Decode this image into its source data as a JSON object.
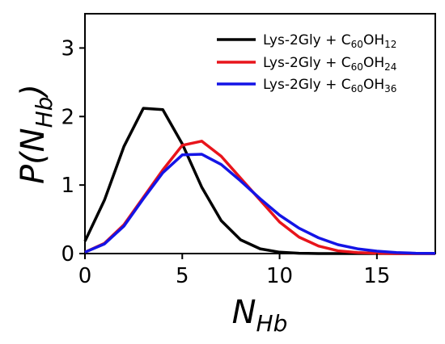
{
  "chart_data": {
    "type": "line",
    "x": [
      0,
      1,
      2,
      3,
      4,
      5,
      6,
      7,
      8,
      9,
      10,
      11,
      12,
      13,
      14,
      15,
      16,
      17,
      18
    ],
    "series": [
      {
        "name": "Lys-2Gly + C60OH12",
        "label_prefix": "Lys-2Gly + C",
        "label_sub1": "60",
        "label_mid": "OH",
        "label_sub2": "12",
        "color": "#000000",
        "values": [
          0.18,
          0.78,
          1.56,
          2.12,
          2.1,
          1.6,
          0.97,
          0.48,
          0.2,
          0.07,
          0.02,
          0.005,
          0,
          0,
          0,
          0,
          0,
          0,
          0
        ]
      },
      {
        "name": "Lys-2Gly + C60OH24",
        "label_prefix": "Lys-2Gly + C",
        "label_sub1": "60",
        "label_mid": "OH",
        "label_sub2": "24",
        "color": "#e8141b",
        "values": [
          0.02,
          0.15,
          0.42,
          0.82,
          1.22,
          1.58,
          1.64,
          1.42,
          1.1,
          0.78,
          0.46,
          0.24,
          0.11,
          0.04,
          0.015,
          0.005,
          0,
          0,
          0
        ]
      },
      {
        "name": "Lys-2Gly + C60OH36",
        "label_prefix": "Lys-2Gly + C",
        "label_sub1": "60",
        "label_mid": "OH",
        "label_sub2": "36",
        "color": "#1414e6",
        "values": [
          0.02,
          0.14,
          0.4,
          0.8,
          1.18,
          1.44,
          1.45,
          1.3,
          1.06,
          0.8,
          0.56,
          0.37,
          0.23,
          0.13,
          0.07,
          0.035,
          0.015,
          0.005,
          0.002
        ]
      }
    ],
    "xlabel": {
      "main": "N",
      "sub": "Hb"
    },
    "ylabel": {
      "prefix": "P(",
      "main": "N",
      "sub": "Hb",
      "suffix": ")"
    },
    "xlim": [
      0,
      18
    ],
    "ylim": [
      0,
      3.5
    ],
    "xticks": [
      "0",
      "5",
      "10",
      "15"
    ],
    "yticks": [
      "0",
      "1",
      "2",
      "3"
    ],
    "legend_position": "top-right",
    "grid": false
  }
}
